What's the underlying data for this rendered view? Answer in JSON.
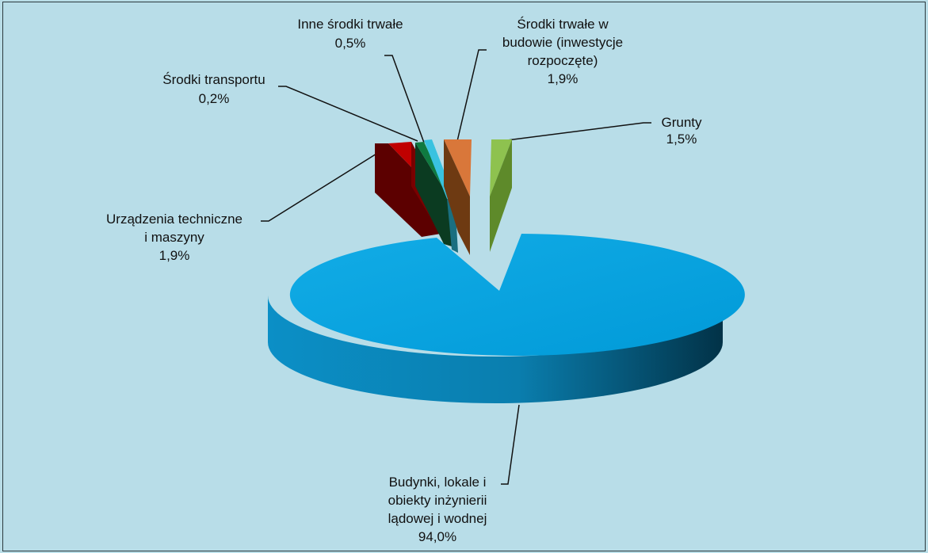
{
  "colors": {
    "background": "#b9dde7",
    "budynki": "#0aa0dc",
    "urzadzenia": "#c00000",
    "transport": "#008a4b",
    "inne": "#39c2e0",
    "w_budowie": "#d9773a",
    "grunty": "#8ec24f"
  },
  "chart_data": {
    "type": "pie",
    "three_d": true,
    "exploded": true,
    "unit": "%",
    "slices": [
      {
        "name": "Grunty",
        "value": 1.5,
        "value_label": "1,5%",
        "color": "#8ec24f"
      },
      {
        "name": "Budynki, lokale i obiekty inżynierii lądowej i wodnej",
        "value": 94.0,
        "value_label": "94,0%",
        "color": "#0aa0dc"
      },
      {
        "name": "Urządzenia techniczne i maszyny",
        "value": 1.9,
        "value_label": "1,9%",
        "color": "#c00000"
      },
      {
        "name": "Środki transportu",
        "value": 0.2,
        "value_label": "0,2%",
        "color": "#008a4b"
      },
      {
        "name": "Inne środki trwałe",
        "value": 0.5,
        "value_label": "0,5%",
        "color": "#39c2e0"
      },
      {
        "name": "Środki trwałe w budowie (inwestycje rozpoczęte)",
        "value": 1.9,
        "value_label": "1,9%",
        "color": "#d9773a"
      }
    ]
  },
  "labels": {
    "grunty": {
      "lines": [
        "Grunty"
      ],
      "value": "1,5%"
    },
    "budynki": {
      "lines": [
        "Budynki, lokale i",
        "obiekty inżynierii",
        "lądowej i wodnej"
      ],
      "value": "94,0%"
    },
    "urzadzenia": {
      "lines": [
        "Urządzenia techniczne",
        "i maszyny"
      ],
      "value": "1,9%"
    },
    "transport": {
      "lines": [
        "Środki transportu"
      ],
      "value": "0,2%"
    },
    "inne": {
      "lines": [
        "Inne środki trwałe"
      ],
      "value": "0,5%"
    },
    "w_budowie": {
      "lines": [
        "Środki trwałe w",
        "budowie (inwestycje",
        "rozpoczęte)"
      ],
      "value": "1,9%"
    }
  }
}
